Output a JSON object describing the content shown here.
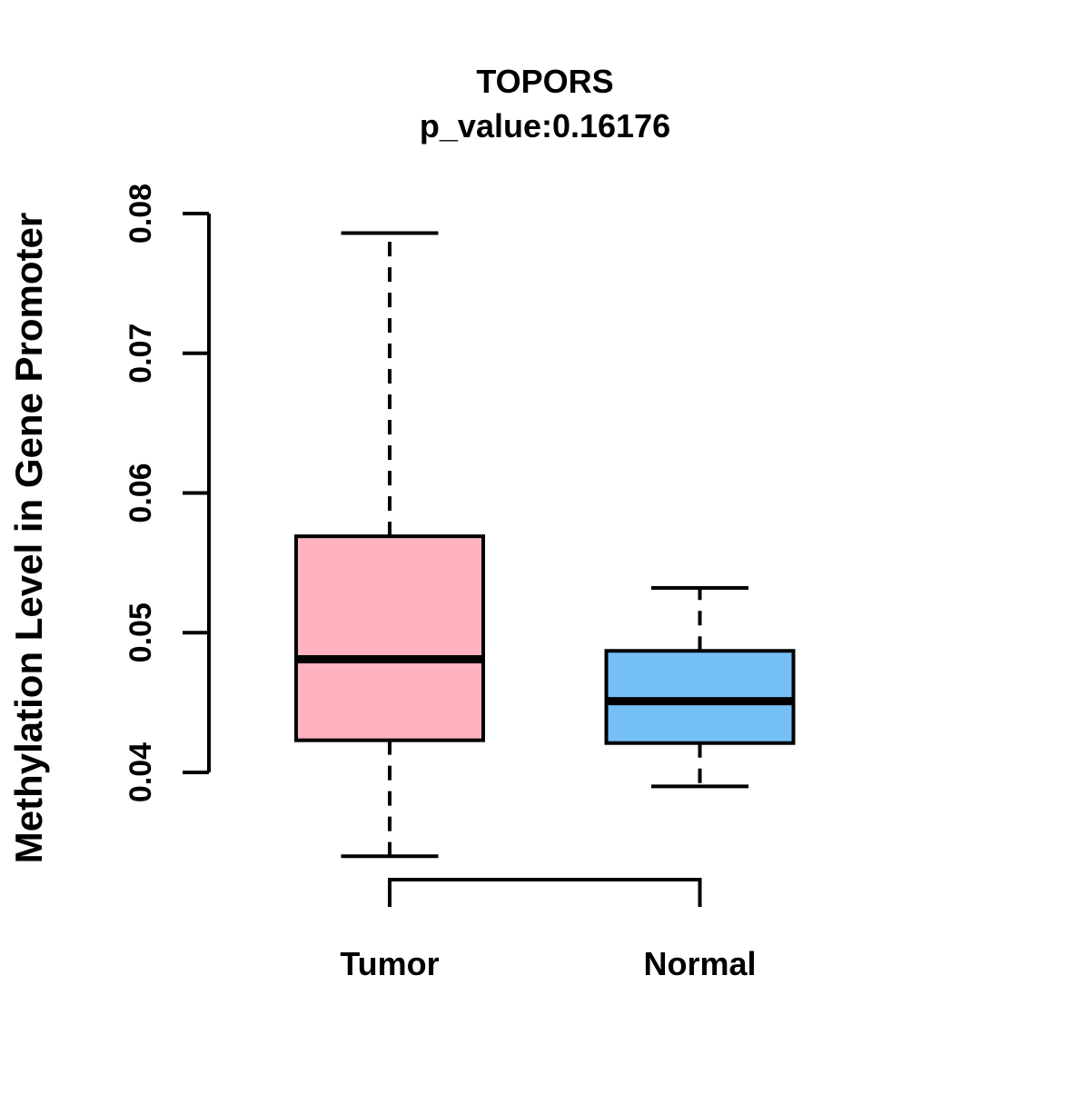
{
  "title": {
    "line1": "TOPORS",
    "line2": "p_value:0.16176"
  },
  "ylabel": "Methylation Level in Gene Promoter",
  "colors": {
    "tumor_fill": "#FFB3C1",
    "normal_fill": "#74BFF5",
    "stroke": "#000000",
    "background": "#FFFFFF"
  },
  "chart_data": {
    "type": "boxplot",
    "title": "TOPORS",
    "subtitle": "p_value:0.16176",
    "gene": "TOPORS",
    "p_value": 0.16176,
    "ylabel": "Methylation Level in Gene Promoter",
    "xlabel": "",
    "ylim": [
      0.033,
      0.0805
    ],
    "grid": false,
    "legend": "none",
    "yticks": [
      {
        "value": 0.04,
        "label": "0.04"
      },
      {
        "value": 0.05,
        "label": "0.05"
      },
      {
        "value": 0.06,
        "label": "0.06"
      },
      {
        "value": 0.07,
        "label": "0.07"
      },
      {
        "value": 0.08,
        "label": "0.08"
      }
    ],
    "categories": [
      "Tumor",
      "Normal"
    ],
    "series": [
      {
        "name": "Tumor",
        "color": "#FFB3C1",
        "whisker_low": 0.034,
        "q1": 0.0423,
        "median": 0.0481,
        "q3": 0.0569,
        "whisker_high": 0.0786
      },
      {
        "name": "Normal",
        "color": "#74BFF5",
        "whisker_low": 0.039,
        "q1": 0.0421,
        "median": 0.0451,
        "q3": 0.0487,
        "whisker_high": 0.0532
      }
    ]
  }
}
